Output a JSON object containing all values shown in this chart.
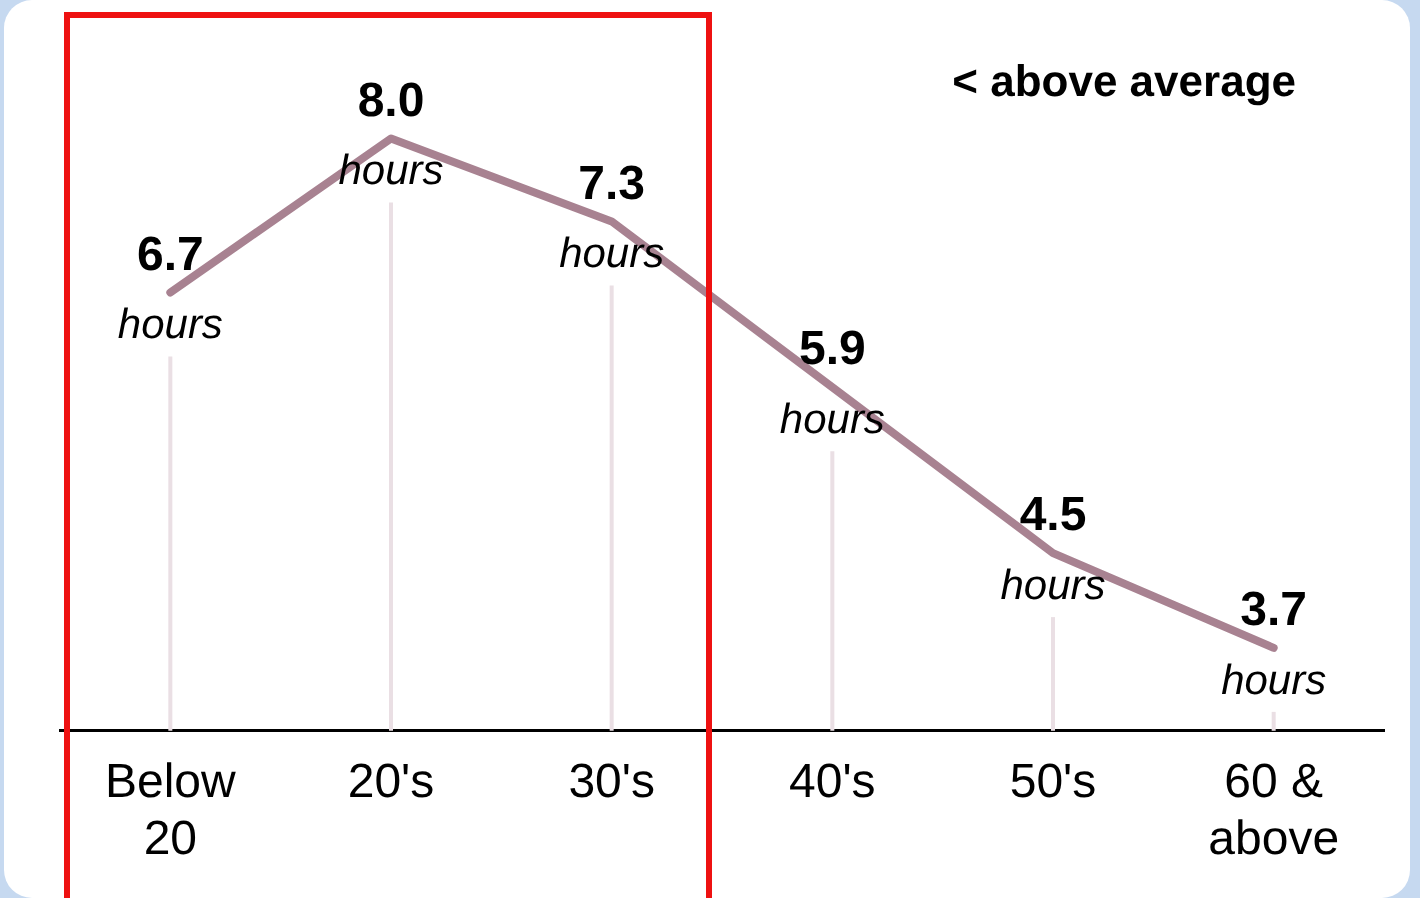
{
  "chart_data": {
    "type": "line",
    "categories": [
      "Below 20",
      "20's",
      "30's",
      "40's",
      "50's",
      "60 & above"
    ],
    "values": [
      6.7,
      8.0,
      7.3,
      5.9,
      4.5,
      3.7
    ],
    "value_labels": [
      "6.7 hours",
      "8.0 hours",
      "7.3 hours",
      "5.9 hours",
      "4.5 hours",
      "3.7 hours"
    ],
    "color": "#a88291",
    "tick_labels": "x",
    "grid": "x",
    "legend": false,
    "annotations": [
      "< above average"
    ]
  }
}
